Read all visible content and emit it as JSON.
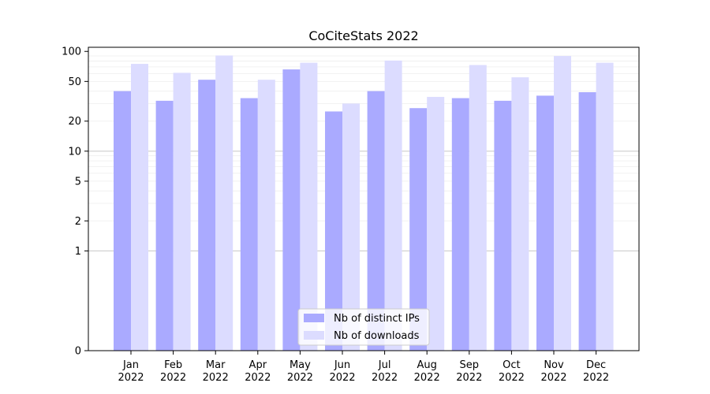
{
  "chart_data": {
    "type": "bar",
    "title": "CoCiteStats 2022",
    "xlabel": "",
    "ylabel": "",
    "yscale": "symlog",
    "ylim": [
      0,
      110
    ],
    "y_ticks": [
      0,
      1,
      2,
      5,
      10,
      20,
      50,
      100
    ],
    "grid": true,
    "legend_position": "bottom-center",
    "categories": [
      "Jan\n2022",
      "Feb\n2022",
      "Mar\n2022",
      "Apr\n2022",
      "May\n2022",
      "Jun\n2022",
      "Jul\n2022",
      "Aug\n2022",
      "Sep\n2022",
      "Oct\n2022",
      "Nov\n2022",
      "Dec\n2022"
    ],
    "series": [
      {
        "name": "Nb of distinct IPs",
        "color": "#aaaaff",
        "values": [
          40,
          32,
          52,
          34,
          66,
          25,
          40,
          27,
          34,
          32,
          36,
          39
        ]
      },
      {
        "name": "Nb of downloads",
        "color": "#dcdcff",
        "values": [
          75,
          61,
          91,
          52,
          77,
          30,
          81,
          35,
          73,
          55,
          90,
          77
        ]
      }
    ]
  }
}
